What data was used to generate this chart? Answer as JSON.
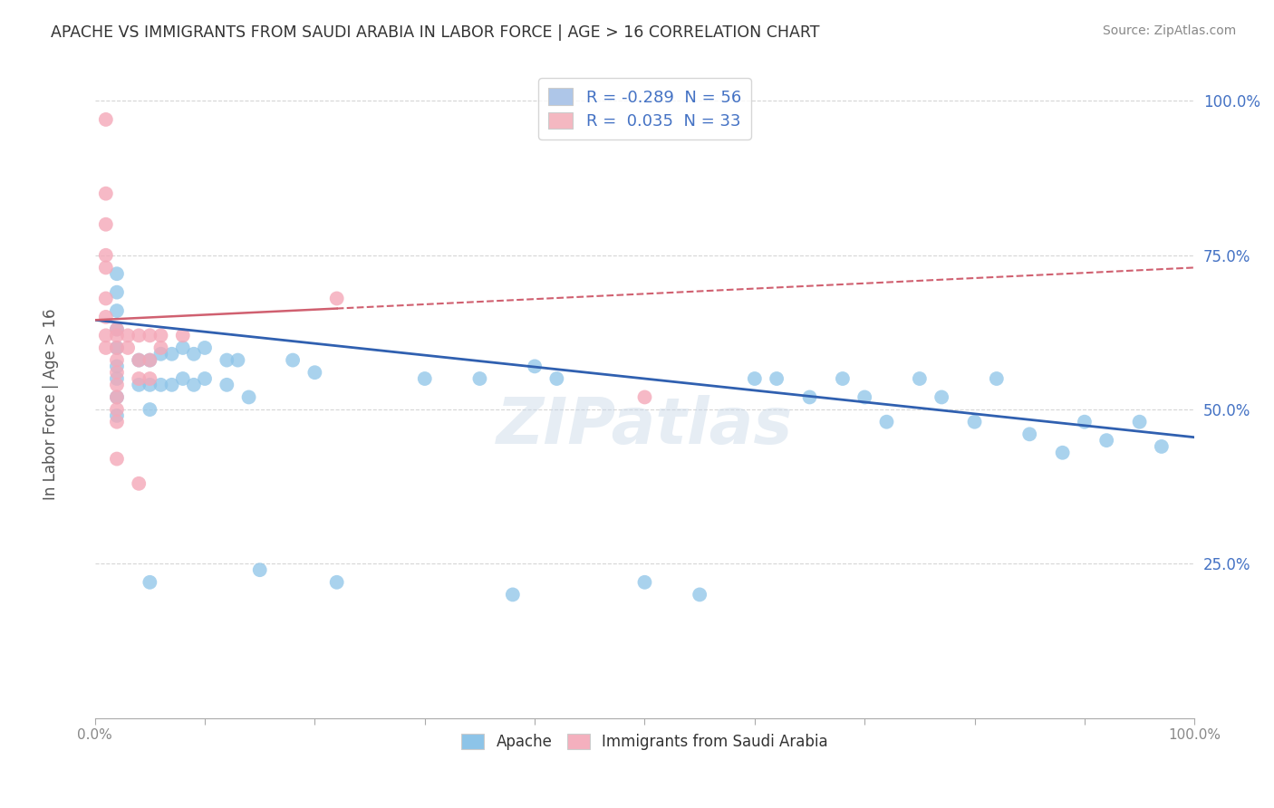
{
  "title": "APACHE VS IMMIGRANTS FROM SAUDI ARABIA IN LABOR FORCE | AGE > 16 CORRELATION CHART",
  "source": "Source: ZipAtlas.com",
  "ylabel": "In Labor Force | Age > 16",
  "xlim": [
    0.0,
    1.0
  ],
  "ylim": [
    0.0,
    1.05
  ],
  "yticks": [
    0.25,
    0.5,
    0.75,
    1.0
  ],
  "ytick_labels": [
    "25.0%",
    "50.0%",
    "75.0%",
    "100.0%"
  ],
  "legend_upper": [
    {
      "label": "R = -0.289  N = 56",
      "color": "#aec6e8"
    },
    {
      "label": "R =  0.035  N = 33",
      "color": "#f4b8c1"
    }
  ],
  "legend_lower": [
    {
      "label": "Apache",
      "color": "#8dc4e8"
    },
    {
      "label": "Immigrants from Saudi Arabia",
      "color": "#f4b0be"
    }
  ],
  "apache_color": "#8dc4e8",
  "saudi_color": "#f4a8b8",
  "apache_line_color": "#3060b0",
  "saudi_line_color": "#d06070",
  "watermark": "ZIPatlas",
  "background_color": "#ffffff",
  "grid_color": "#cccccc",
  "apache_line_y0": 0.645,
  "apache_line_y1": 0.455,
  "saudi_line_solid_x0": 0.0,
  "saudi_line_solid_x1": 0.22,
  "saudi_line_y0": 0.645,
  "saudi_line_y1": 0.73,
  "apache_scatter_x": [
    0.02,
    0.02,
    0.02,
    0.02,
    0.02,
    0.02,
    0.02,
    0.02,
    0.02,
    0.04,
    0.04,
    0.05,
    0.05,
    0.05,
    0.05,
    0.06,
    0.06,
    0.07,
    0.07,
    0.08,
    0.08,
    0.09,
    0.09,
    0.1,
    0.1,
    0.12,
    0.12,
    0.13,
    0.14,
    0.15,
    0.18,
    0.2,
    0.22,
    0.3,
    0.35,
    0.38,
    0.4,
    0.42,
    0.5,
    0.55,
    0.6,
    0.62,
    0.65,
    0.68,
    0.7,
    0.72,
    0.75,
    0.77,
    0.8,
    0.82,
    0.85,
    0.88,
    0.9,
    0.92,
    0.95,
    0.97
  ],
  "apache_scatter_y": [
    0.72,
    0.69,
    0.66,
    0.63,
    0.6,
    0.57,
    0.55,
    0.52,
    0.49,
    0.58,
    0.54,
    0.58,
    0.54,
    0.5,
    0.22,
    0.59,
    0.54,
    0.59,
    0.54,
    0.6,
    0.55,
    0.59,
    0.54,
    0.6,
    0.55,
    0.58,
    0.54,
    0.58,
    0.52,
    0.24,
    0.58,
    0.56,
    0.22,
    0.55,
    0.55,
    0.2,
    0.57,
    0.55,
    0.22,
    0.2,
    0.55,
    0.55,
    0.52,
    0.55,
    0.52,
    0.48,
    0.55,
    0.52,
    0.48,
    0.55,
    0.46,
    0.43,
    0.48,
    0.45,
    0.48,
    0.44
  ],
  "saudi_scatter_x": [
    0.01,
    0.01,
    0.01,
    0.01,
    0.01,
    0.01,
    0.01,
    0.01,
    0.01,
    0.02,
    0.02,
    0.02,
    0.02,
    0.02,
    0.02,
    0.02,
    0.02,
    0.02,
    0.02,
    0.03,
    0.03,
    0.04,
    0.04,
    0.04,
    0.04,
    0.05,
    0.05,
    0.05,
    0.06,
    0.06,
    0.08,
    0.22,
    0.5
  ],
  "saudi_scatter_y": [
    0.97,
    0.85,
    0.8,
    0.75,
    0.73,
    0.68,
    0.65,
    0.62,
    0.6,
    0.63,
    0.62,
    0.6,
    0.58,
    0.56,
    0.54,
    0.52,
    0.5,
    0.48,
    0.42,
    0.62,
    0.6,
    0.62,
    0.58,
    0.55,
    0.38,
    0.62,
    0.58,
    0.55,
    0.62,
    0.6,
    0.62,
    0.68,
    0.52
  ]
}
